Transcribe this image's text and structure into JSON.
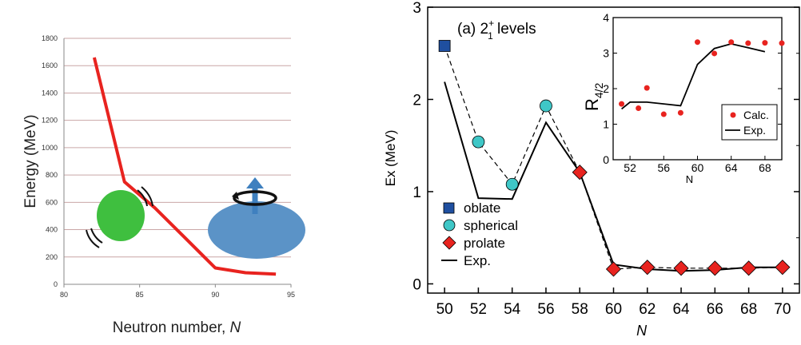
{
  "colors": {
    "left_line": "#e8231f",
    "left_grid": "#c9a6a6",
    "sphere": "#3fbf3f",
    "ellipsoid": "#5b93c7",
    "arrow": "#3f80bf",
    "oblate": "#1f4fa0",
    "spherical": "#3fc7c7",
    "prolate": "#e8231f",
    "inset_calc": "#e8231f"
  },
  "chart_data": [
    {
      "type": "line",
      "title": "",
      "xlabel": "Neutron number, ",
      "xlabel_italic": "N",
      "ylabel": "Energy (MeV)",
      "xlim": [
        80,
        95
      ],
      "ylim": [
        0,
        1800
      ],
      "xticks": [
        "80",
        "85",
        "90",
        "95"
      ],
      "yticks": [
        "0",
        "200",
        "400",
        "600",
        "800",
        "1000",
        "1200",
        "1400",
        "1600",
        "1800"
      ],
      "grid": true,
      "icons": [
        "spherical-nucleus-icon",
        "deformed-nucleus-icon",
        "rotation-arrow-icon"
      ],
      "series": [
        {
          "x": [
            82,
            84,
            86,
            88,
            90,
            92,
            94
          ],
          "y": [
            1660,
            750,
            560,
            340,
            120,
            85,
            75
          ]
        }
      ]
    },
    {
      "type": "line",
      "panel_label": "(a) 2",
      "panel_label_sup": "+",
      "panel_label_sub": "1",
      "panel_label_tail": " levels",
      "xlabel": "N",
      "ylabel": "Ex (MeV)",
      "xlim": [
        49,
        71
      ],
      "ylim": [
        -0.1,
        3
      ],
      "xticks": [
        "50",
        "52",
        "54",
        "56",
        "58",
        "60",
        "62",
        "64",
        "66",
        "68",
        "70"
      ],
      "yticks": [
        "0",
        "1",
        "2",
        "3"
      ],
      "legend": "bottom-left",
      "legend_labels": [
        "oblate",
        "spherical",
        "prolate",
        "Exp."
      ],
      "series": [
        {
          "name": "oblate",
          "marker": "square",
          "x": [
            50
          ],
          "y": [
            2.58
          ]
        },
        {
          "name": "spherical",
          "marker": "circle",
          "x": [
            52,
            54,
            56
          ],
          "y": [
            1.54,
            1.08,
            1.93
          ]
        },
        {
          "name": "prolate",
          "marker": "diamond",
          "x": [
            58,
            60,
            62,
            64,
            66,
            68,
            70
          ],
          "y": [
            1.21,
            0.16,
            0.18,
            0.17,
            0.17,
            0.17,
            0.18
          ]
        },
        {
          "name": "Exp.",
          "marker": "none",
          "x": [
            50,
            52,
            54,
            56,
            58,
            60,
            62,
            64,
            66,
            68,
            70
          ],
          "y": [
            2.19,
            0.93,
            0.92,
            1.75,
            1.21,
            0.21,
            0.16,
            0.14,
            0.15,
            0.18,
            0.18
          ]
        }
      ],
      "calc_line_x": [
        50,
        52,
        54,
        56,
        58,
        60,
        62,
        64,
        66,
        68,
        70
      ],
      "calc_line_y": [
        2.58,
        1.54,
        1.08,
        1.93,
        1.21,
        0.16,
        0.18,
        0.17,
        0.17,
        0.17,
        0.18
      ]
    },
    {
      "type": "scatter",
      "inset": true,
      "ylabel_main": "R",
      "ylabel_sub": "4/2",
      "xlabel": "N",
      "xlim": [
        50,
        70
      ],
      "ylim": [
        0,
        4
      ],
      "xticks": [
        "52",
        "56",
        "60",
        "64",
        "68"
      ],
      "yticks": [
        "0",
        "1",
        "2",
        "3",
        "4"
      ],
      "legend": "right",
      "legend_labels": [
        "Calc.",
        "Exp."
      ],
      "series": [
        {
          "name": "Calc.",
          "marker": "dot",
          "x": [
            51,
            53,
            54,
            56,
            58,
            60,
            62,
            64,
            66,
            68,
            70
          ],
          "y": [
            1.57,
            1.45,
            2.02,
            1.28,
            1.32,
            3.31,
            2.99,
            3.31,
            3.28,
            3.29,
            3.28
          ]
        },
        {
          "name": "Exp.",
          "marker": "none",
          "x": [
            51,
            52,
            54,
            56,
            58,
            60,
            62,
            64,
            66,
            68
          ],
          "y": [
            1.43,
            1.62,
            1.62,
            1.57,
            1.52,
            2.68,
            3.13,
            3.26,
            3.15,
            3.04
          ]
        }
      ]
    }
  ]
}
